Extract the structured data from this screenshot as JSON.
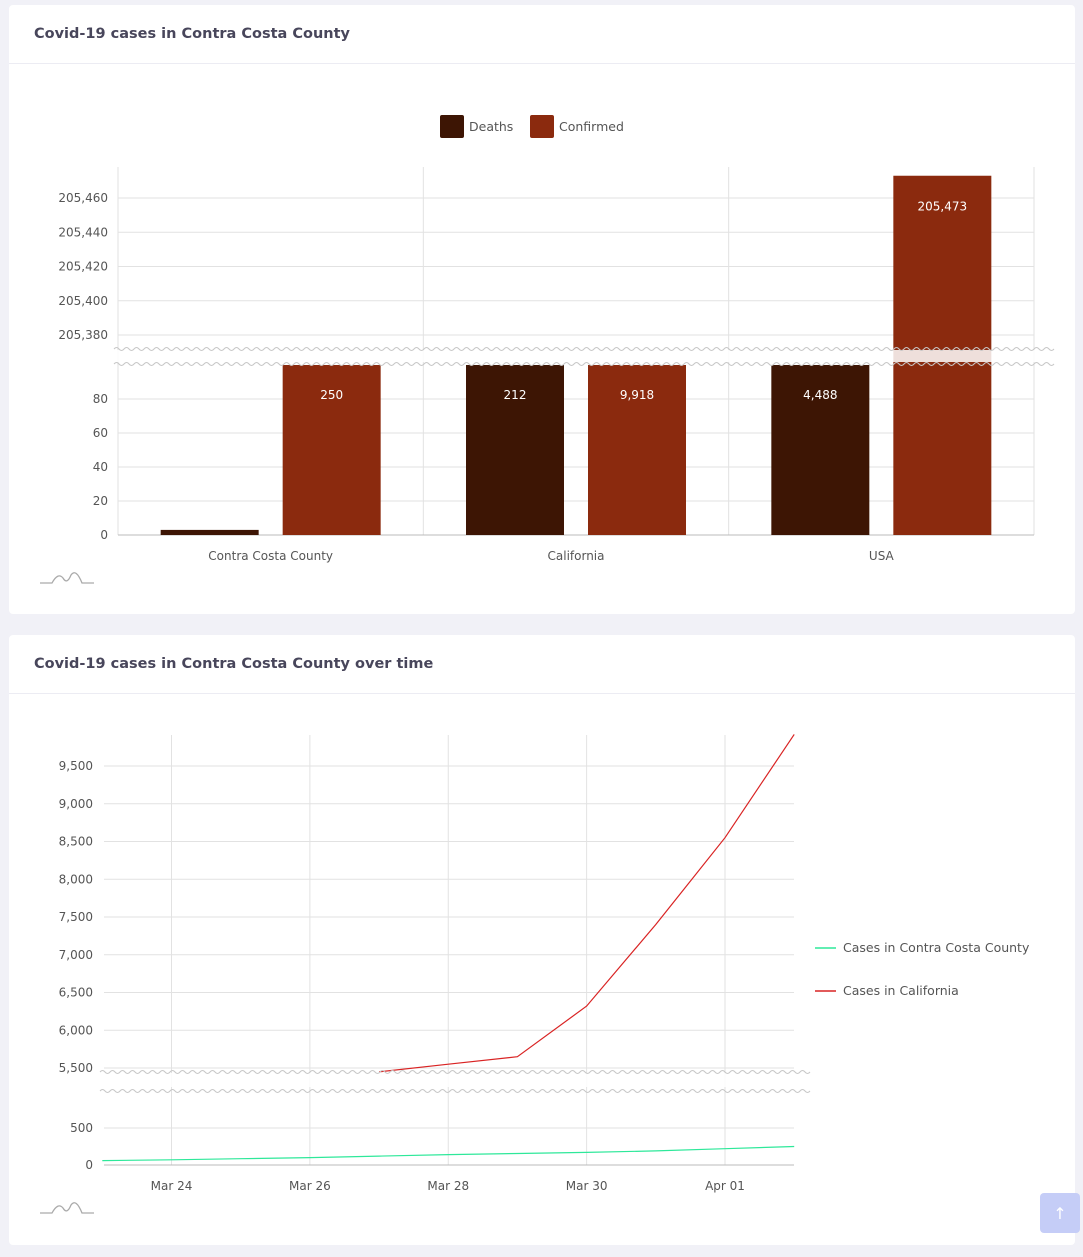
{
  "cards": [
    {
      "title": "Covid-19 cases in Contra Costa County"
    },
    {
      "title": "Covid-19 cases in Contra Costa County over time"
    }
  ],
  "chart_data": [
    {
      "type": "bar",
      "title": "Covid-19 cases in Contra Costa County",
      "categories": [
        "Contra Costa County",
        "California",
        "USA"
      ],
      "series": [
        {
          "name": "Deaths",
          "color": "#3d1504",
          "values": [
            3,
            212,
            4488
          ],
          "labels": [
            "",
            "212",
            "4,488"
          ]
        },
        {
          "name": "Confirmed",
          "color": "#8b2a0e",
          "values": [
            250,
            9918,
            205473
          ],
          "labels": [
            "250",
            "9,918",
            "205,473"
          ]
        }
      ],
      "axis_break": true,
      "y_ticks_lower": [
        "0",
        "20",
        "40",
        "60",
        "80"
      ],
      "y_ticks_upper": [
        "205,380",
        "205,400",
        "205,420",
        "205,440",
        "205,460"
      ],
      "legend_position": "top",
      "grid": true
    },
    {
      "type": "line",
      "title": "Covid-19 cases in Contra Costa County over time",
      "x_ticks": [
        "Mar 24",
        "Mar 26",
        "Mar 28",
        "Mar 30",
        "Apr 01"
      ],
      "axis_break": true,
      "y_ticks_lower": [
        "0",
        "500"
      ],
      "y_ticks_upper": [
        "5,500",
        "6,000",
        "6,500",
        "7,000",
        "7,500",
        "8,000",
        "8,500",
        "9,000",
        "9,500"
      ],
      "series": [
        {
          "name": "Cases in Contra Costa County",
          "color": "#2ee89a",
          "points": [
            [
              "Mar 23",
              60
            ],
            [
              "Mar 24",
              70
            ],
            [
              "Mar 25",
              85
            ],
            [
              "Mar 26",
              100
            ],
            [
              "Mar 27",
              120
            ],
            [
              "Mar 28",
              140
            ],
            [
              "Mar 29",
              155
            ],
            [
              "Mar 30",
              170
            ],
            [
              "Mar 31",
              190
            ],
            [
              "Apr 01",
              220
            ],
            [
              "Apr 02",
              250
            ]
          ]
        },
        {
          "name": "Cases in California",
          "color": "#d92323",
          "points": [
            [
              "Mar 27",
              5450
            ],
            [
              "Mar 28",
              5550
            ],
            [
              "Mar 29",
              5650
            ],
            [
              "Mar 30",
              6320
            ],
            [
              "Mar 31",
              7400
            ],
            [
              "Apr 01",
              8550
            ],
            [
              "Apr 02",
              9918
            ]
          ]
        }
      ],
      "legend_position": "right",
      "grid": true
    }
  ],
  "scroll_top": {
    "icon": "arrow-up-icon",
    "glyph": "↑"
  }
}
